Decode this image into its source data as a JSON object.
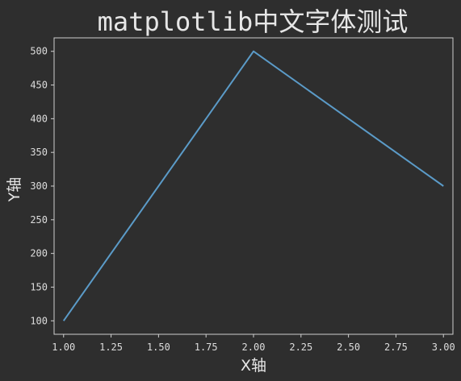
{
  "chart_data": {
    "type": "line",
    "title": "matplotlib中文字体测试",
    "xlabel": "X轴",
    "ylabel": "Y轴",
    "xlim": [
      0.95,
      3.05
    ],
    "ylim": [
      80,
      520
    ],
    "xticks": [
      1.0,
      1.25,
      1.5,
      1.75,
      2.0,
      2.25,
      2.5,
      2.75,
      3.0
    ],
    "xtick_labels": [
      "1.00",
      "1.25",
      "1.50",
      "1.75",
      "2.00",
      "2.25",
      "2.50",
      "2.75",
      "3.00"
    ],
    "yticks": [
      100,
      150,
      200,
      250,
      300,
      350,
      400,
      450,
      500
    ],
    "ytick_labels": [
      "100",
      "150",
      "200",
      "250",
      "300",
      "350",
      "400",
      "450",
      "500"
    ],
    "grid": false,
    "series": [
      {
        "x": [
          1,
          2,
          3
        ],
        "y": [
          100,
          500,
          300
        ],
        "color": "#5b9bc8"
      }
    ]
  }
}
